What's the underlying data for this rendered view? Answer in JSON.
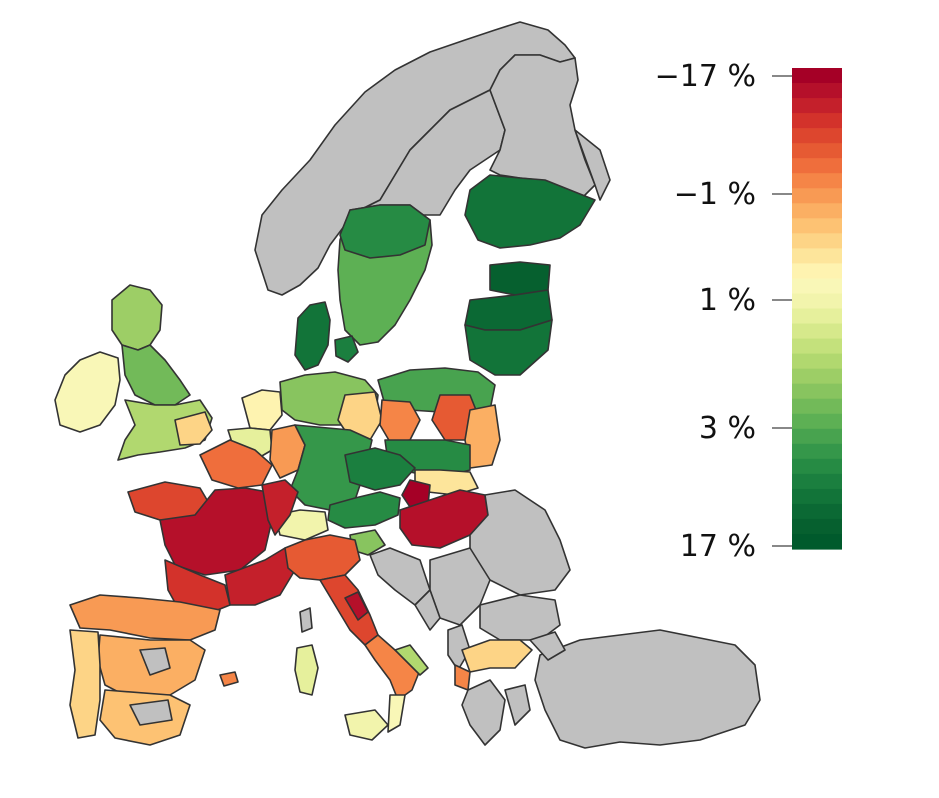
{
  "legend": {
    "labels": [
      "−17 %",
      "−1 %",
      "1 %",
      "3 %",
      "17 %"
    ],
    "colors": [
      "#a50026",
      "#b5102a",
      "#c4202b",
      "#d3322b",
      "#dd462e",
      "#e65a33",
      "#ef6e3c",
      "#f58547",
      "#f89a54",
      "#fbaf63",
      "#fdc273",
      "#fdd486",
      "#fde59b",
      "#fef3b0",
      "#f9f7b7",
      "#f2f4ac",
      "#e6f09c",
      "#d6e98b",
      "#c4e17c",
      "#b1d86f",
      "#9dce66",
      "#88c45f",
      "#72ba59",
      "#5db054",
      "#48a34f",
      "#35974a",
      "#268b44",
      "#1b7f3f",
      "#127439",
      "#0b6934",
      "#06602f",
      "#005a2c"
    ]
  },
  "map": {
    "nodata_color": "#c0c0c0",
    "border_color": "#333333"
  }
}
